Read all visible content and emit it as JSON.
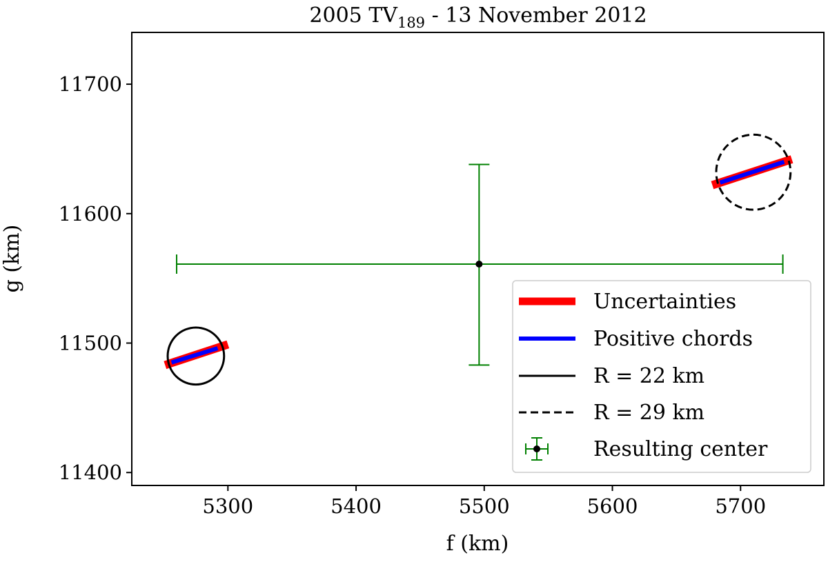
{
  "chart_data": {
    "type": "scatter",
    "title": "2005 TV",
    "title_subscript": "189",
    "title_suffix": " - 13 November 2012",
    "xlabel": "f (km)",
    "ylabel": "g (km)",
    "xlim": [
      5225,
      5765
    ],
    "ylim": [
      11390,
      11740
    ],
    "xticks": [
      5300,
      5400,
      5500,
      5600,
      5700
    ],
    "yticks": [
      11400,
      11500,
      11600,
      11700
    ],
    "grid": false,
    "legend_position": "lower-right",
    "colors": {
      "uncertainty": "#ff0000",
      "chord": "#0000ff",
      "circle": "#000000",
      "center": "#008000"
    },
    "uncertainties": [
      {
        "x": [
          5251,
          5300
        ],
        "y": [
          11483,
          11499
        ]
      },
      {
        "x": [
          5678,
          5740
        ],
        "y": [
          11622,
          11642
        ]
      }
    ],
    "chords": [
      {
        "x": [
          5256,
          5292
        ],
        "y": [
          11485,
          11496
        ]
      },
      {
        "x": [
          5684,
          5734
        ],
        "y": [
          11624,
          11640
        ]
      }
    ],
    "circles": [
      {
        "cx": 5275,
        "cy": 11490,
        "r": 22,
        "style": "solid"
      },
      {
        "cx": 5710,
        "cy": 11632,
        "r": 29,
        "style": "dashed"
      }
    ],
    "center": {
      "x": 5496,
      "y": 11561,
      "xerr": [
        5260,
        5733
      ],
      "yerr": [
        11483,
        11638
      ]
    },
    "legend": [
      {
        "label": "Uncertainties",
        "kind": "thick-line",
        "color": "#ff0000"
      },
      {
        "label": "Positive chords",
        "kind": "line",
        "color": "#0000ff"
      },
      {
        "label": "R = 22 km",
        "kind": "solid",
        "color": "#000000"
      },
      {
        "label": "R = 29 km",
        "kind": "dashed",
        "color": "#000000"
      },
      {
        "label": "Resulting center",
        "kind": "errorbar",
        "color": "#008000"
      }
    ]
  }
}
